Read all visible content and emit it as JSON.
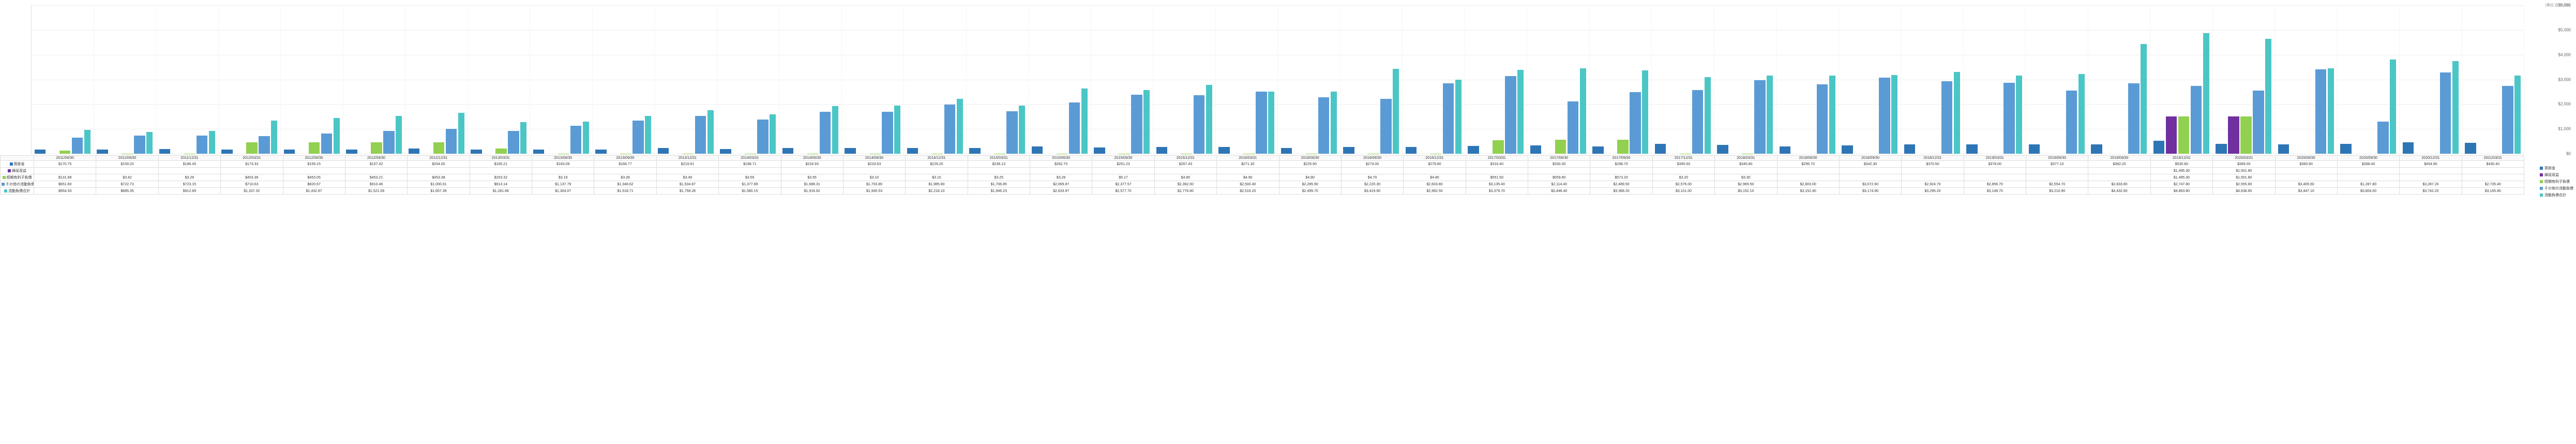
{
  "chart": {
    "type": "bar",
    "ymax": 6000,
    "ytick_step": 1000,
    "yunit_label": "(単位:百万USD)",
    "background_color": "#ffffff",
    "grid_color": "#eeeeee",
    "border_color": "#dddddd",
    "label_fontsize": 8,
    "periods": [
      "2011/06/30",
      "2011/09/30",
      "2011/12/31",
      "2012/03/31",
      "2012/06/30",
      "2012/09/30",
      "2012/12/31",
      "2013/03/31",
      "2013/06/30",
      "2013/09/30",
      "2013/12/31",
      "2014/03/31",
      "2014/06/30",
      "2014/09/30",
      "2014/12/31",
      "2015/03/31",
      "2015/06/30",
      "2015/09/30",
      "2015/12/31",
      "2016/03/31",
      "2016/06/30",
      "2016/09/30",
      "2016/12/31",
      "2017/03/31",
      "2017/06/30",
      "2017/09/30",
      "2017/12/31",
      "2018/03/31",
      "2018/06/30",
      "2018/09/30",
      "2018/12/31",
      "2019/03/31",
      "2019/06/30",
      "2019/09/30",
      "2019/12/31",
      "2020/03/31",
      "2020/06/30",
      "2020/09/30",
      "2020/12/31",
      "2021/03/31"
    ],
    "series": [
      {
        "name": "買掛金",
        "label": "買掛金",
        "color": "#2e75b6",
        "values": [
          170.75,
          159.2,
          186.45,
          173.33,
          159.15,
          157.42,
          204.0,
          165.21,
          163.09,
          166.77,
          219.91,
          198.71,
          224.93,
          233.63,
          229.2,
          236.13,
          282.7,
          251.23,
          267.43,
          271.3,
          225.9,
          274.0,
          279.8,
          316.4,
          330.3,
          298.7,
          395.5,
          345.8,
          295.7,
          342.3,
          370.5,
          378.0,
          377.1,
          382.2,
          530.8,
          389.0,
          383.9,
          398.4,
          454.9,
          430.4
        ]
      },
      {
        "name": "繰延収益",
        "label": "繰延収益",
        "color": "#7030a0",
        "values": [
          null,
          null,
          null,
          null,
          null,
          null,
          null,
          null,
          null,
          null,
          null,
          null,
          null,
          null,
          null,
          null,
          null,
          null,
          null,
          null,
          null,
          null,
          null,
          null,
          null,
          null,
          null,
          null,
          null,
          null,
          null,
          null,
          null,
          null,
          1495.3,
          1501.8,
          null,
          null,
          null,
          null
        ]
      },
      {
        "name": "短期有利子負債",
        "label": "短期有利子負債",
        "color": "#92d050",
        "values": [
          131.98,
          3.42,
          3.29,
          453.36,
          453.05,
          453.21,
          453.38,
          203.32,
          3.19,
          3.39,
          3.49,
          3.55,
          3.55,
          3.1,
          3.1,
          3.25,
          3.26,
          5.17,
          4.8,
          4.9,
          4.8,
          4.7,
          4.8,
          551.5,
          559.9,
          573.2,
          3.2,
          3.3,
          null,
          null,
          null,
          null,
          null,
          null,
          1495.3,
          1501.8,
          null,
          null,
          null,
          null
        ]
      },
      {
        "name": "その他の流動負債",
        "label": "その他の流動負債",
        "color": "#5b9bd5",
        "values": [
          651.6,
          722.73,
          723.15,
          710.63,
          820.67,
          910.46,
          1000.01,
          913.14,
          1137.79,
          1348.62,
          1534.87,
          1377.89,
          1688.31,
          1703.8,
          1985.8,
          1706.85,
          2069.87,
          2377.57,
          2362.0,
          2500.4,
          2285.9,
          2220.3,
          2833.8,
          3135.4,
          2114.4,
          2489.5,
          2576.0,
          2969.5,
          2803.0,
          3072.6,
          2924.7,
          2856.7,
          2554.7,
          2833.8,
          2747.8,
          2555.8,
          3405.6,
          1287.8,
          3287.2,
          2735.4
        ]
      },
      {
        "name": "流動負債合計",
        "label": "流動負債合計",
        "color": "#4bc6c6",
        "values": [
          954.33,
          885.35,
          912.89,
          1337.32,
          1432.87,
          1521.09,
          1657.39,
          1281.66,
          1304.07,
          1518.71,
          1758.28,
          1580.15,
          1916.62,
          1940.53,
          2218.1,
          1946.23,
          2633.97,
          2577.7,
          2776.6,
          2516.2,
          2499.7,
          3419.9,
          2992.5,
          3379.7,
          3448.4,
          3368.2,
          3101.0,
          3152.1,
          3152.4,
          3174.9,
          3295.2,
          3148.7,
          3210.9,
          4432.6,
          4863.8,
          4638.6,
          3447.1,
          3804.0,
          3742.2,
          3165.8
        ]
      }
    ],
    "row_labels": [
      "買掛金",
      "繰延収益",
      "短期有利子負債",
      "その他の流動負債",
      "流動負債合計"
    ]
  }
}
